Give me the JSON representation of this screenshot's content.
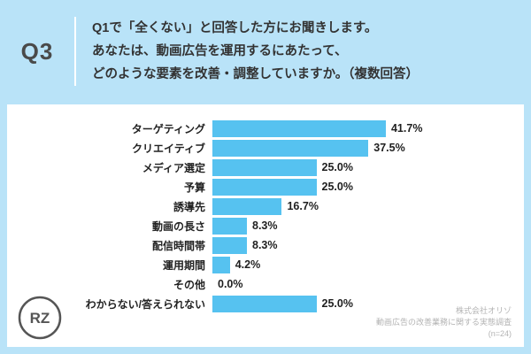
{
  "header": {
    "question_number": "Q3",
    "question_lines": [
      "Q1で「全くない」と回答した方にお聞きします。",
      "あなたは、動画広告を運用するにあたって、",
      "どのような要素を改善・調整していますか。（複数回答）"
    ]
  },
  "chart_data": {
    "type": "bar",
    "orientation": "horizontal",
    "title": "",
    "xlabel": "",
    "ylabel": "",
    "xlim": [
      0,
      45
    ],
    "grid": false,
    "bar_color": "#56c2f0",
    "background_color": "#b9e3f8",
    "categories": [
      "ターゲティング",
      "クリエイティブ",
      "メディア選定",
      "予算",
      "誘導先",
      "動画の長さ",
      "配信時間帯",
      "運用期間",
      "その他",
      "わからない/答えられない"
    ],
    "values": [
      41.7,
      37.5,
      25.0,
      25.0,
      16.7,
      8.3,
      8.3,
      4.2,
      0.0,
      25.0
    ],
    "value_labels": [
      "41.7%",
      "37.5%",
      "25.0%",
      "25.0%",
      "16.7%",
      "8.3%",
      "8.3%",
      "4.2%",
      "0.0%",
      "25.0%"
    ]
  },
  "footer": {
    "company": "株式会社オリゾ",
    "survey": "動画広告の改善業務に関する実態調査",
    "sample": "(n=24)",
    "logo_text": "RZ"
  }
}
